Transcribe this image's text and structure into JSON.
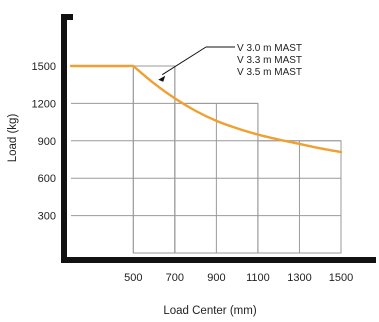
{
  "chart_data": {
    "type": "line",
    "xlabel": "Load Center (mm)",
    "ylabel": "Load (kg)",
    "x_ticks": [
      "500",
      "700",
      "900",
      "1100",
      "1300",
      "1500"
    ],
    "y_ticks": [
      "300",
      "600",
      "900",
      "1200",
      "1500"
    ],
    "xlim": [
      200,
      1500
    ],
    "ylim": [
      0,
      1500
    ],
    "series": [
      {
        "color": "#f0a030",
        "x": [
          200,
          500,
          600,
          700,
          800,
          900,
          1000,
          1100,
          1200,
          1300,
          1400,
          1500
        ],
        "y": [
          1500,
          1500,
          1360,
          1240,
          1140,
          1060,
          1000,
          950,
          910,
          875,
          840,
          810
        ]
      }
    ],
    "capacity_boxes": [
      {
        "x": [
          500,
          700
        ],
        "y": [
          0,
          1500
        ]
      },
      {
        "x": [
          700,
          1100
        ],
        "y": [
          0,
          1200
        ]
      },
      {
        "x": [
          1100,
          1500
        ],
        "y": [
          0,
          900
        ]
      }
    ],
    "annotation": {
      "lines": [
        "V 3.0 m MAST",
        "V 3.3 m MAST",
        "V 3.5 m MAST"
      ],
      "points_to": {
        "x": 620,
        "y": 1390
      }
    },
    "grid": true
  }
}
